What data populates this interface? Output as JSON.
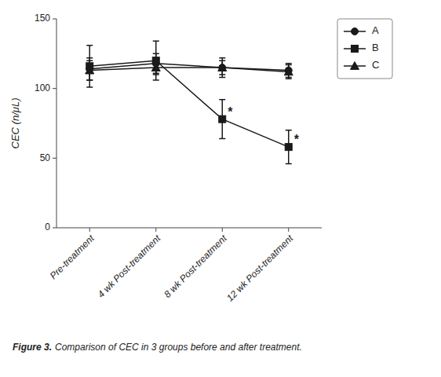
{
  "chart_data": {
    "type": "line",
    "y_label": "CEC (n/μL)",
    "categories": [
      "Pre-treatment",
      "4 wk Post-treatment",
      "8 wk Post-treatment",
      "12 wk Post-treatment"
    ],
    "series": [
      {
        "name": "A",
        "color": "#1a1a1a",
        "marker": "circle",
        "values": [
          114,
          118,
          115,
          113
        ],
        "yerr": [
          8,
          7,
          7,
          5
        ]
      },
      {
        "name": "B",
        "color": "#1a1a1a",
        "marker": "square",
        "values": [
          116,
          120,
          78,
          58
        ],
        "yerr": [
          15,
          14,
          14,
          12
        ]
      },
      {
        "name": "C",
        "color": "#1a1a1a",
        "marker": "triangle",
        "values": [
          113,
          115,
          115,
          112
        ],
        "yerr": [
          7,
          5,
          5,
          5
        ]
      }
    ],
    "annotations": [
      {
        "text": "*",
        "series": "B",
        "category": "8 wk Post-treatment"
      },
      {
        "text": "*",
        "series": "B",
        "category": "12 wk Post-treatment"
      }
    ],
    "ylim": [
      0,
      150
    ],
    "yticks": [
      0,
      50,
      100,
      150
    ],
    "grid": false,
    "legend": "right",
    "caption": {
      "bold": "Figure 3.",
      "text": "Comparison of CEC in 3 groups before and after treatment."
    }
  }
}
